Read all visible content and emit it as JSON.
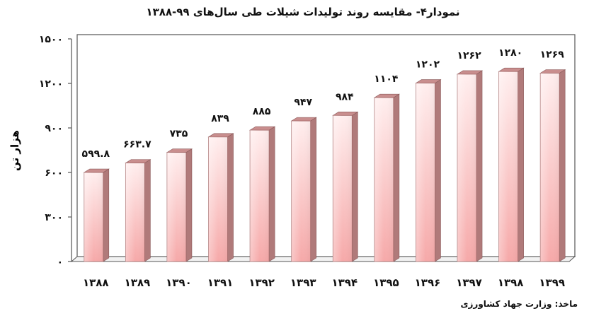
{
  "chart_data": {
    "type": "bar",
    "title": "نمودار۴- مقایسه روند تولیدات شیلات طی سال‌های ۹۹-۱۳۸۸",
    "ylabel": "هزار تن",
    "xlabel": "",
    "source": "ماخذ: وزارت جهاد کشاورزی",
    "ylim": [
      0,
      1500
    ],
    "yticks": [
      0,
      300,
      600,
      900,
      1200,
      1500
    ],
    "ytick_labels": [
      "۰",
      "۳۰۰",
      "۶۰۰",
      "۹۰۰",
      "۱۲۰۰",
      "۱۵۰۰"
    ],
    "categories": [
      "۱۳۸۸",
      "۱۳۸۹",
      "۱۳۹۰",
      "۱۳۹۱",
      "۱۳۹۲",
      "۱۳۹۳",
      "۱۳۹۴",
      "۱۳۹۵",
      "۱۳۹۶",
      "۱۳۹۷",
      "۱۳۹۸",
      "۱۳۹۹"
    ],
    "values": [
      599.8,
      663.7,
      735,
      839,
      885,
      947,
      984,
      1104,
      1202,
      1262,
      1280,
      1269
    ],
    "value_labels": [
      "۵۹۹.۸",
      "۶۶۳.۷",
      "۷۳۵",
      "۸۳۹",
      "۸۸۵",
      "۹۴۷",
      "۹۸۴",
      "۱۱۰۴",
      "۱۲۰۲",
      "۱۲۶۲",
      "۱۲۸۰",
      "۱۲۶۹"
    ],
    "grid": false,
    "legend": "none",
    "colors": {
      "bar_front": "#f9b8b8",
      "bar_side": "#b07a7a",
      "bar_top": "#c98e8e"
    }
  }
}
